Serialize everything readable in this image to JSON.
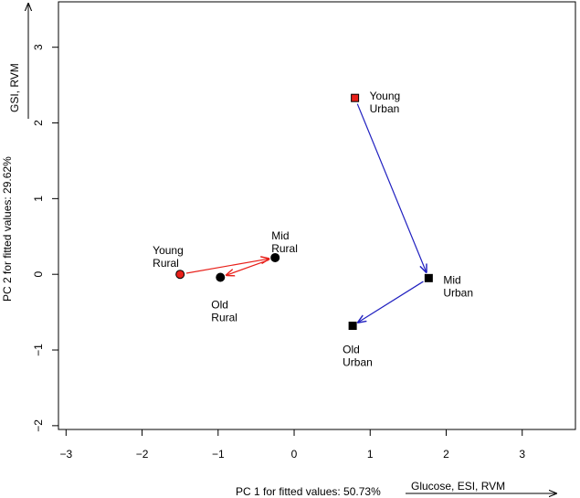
{
  "chart_data": {
    "type": "scatter",
    "title": "",
    "xlabel": "PC 1 for fitted values: 50.73%",
    "ylabel": "PC 2 for fitted values: 29.62%",
    "xlim": [
      -3.1,
      3.7
    ],
    "ylim": [
      -2.05,
      3.6
    ],
    "xticks": [
      "-3",
      "-2",
      "-1",
      "0",
      "1",
      "2",
      "3"
    ],
    "yticks": [
      "-2",
      "-1",
      "0",
      "1",
      "2",
      "3"
    ],
    "x_variable_arrow_label": "Glucose, ESI, RVM",
    "y_variable_arrow_label": "GSI, RVM",
    "series": [
      {
        "marker": "circle",
        "arrow_color": "#e8201a",
        "points": [
          {
            "label_lines": [
              "Young",
              "Rural"
            ],
            "x": -1.5,
            "y": 0.0,
            "fill": "#e8201a"
          },
          {
            "label_lines": [
              "Mid",
              "Rural"
            ],
            "x": -0.25,
            "y": 0.22,
            "fill": "#000000"
          },
          {
            "label_lines": [
              "Old",
              "Rural"
            ],
            "x": -0.97,
            "y": -0.04,
            "fill": "#000000"
          }
        ]
      },
      {
        "marker": "square",
        "arrow_color": "#2020c0",
        "points": [
          {
            "label_lines": [
              "Young",
              "Urban"
            ],
            "x": 0.8,
            "y": 2.33,
            "fill": "#e8201a"
          },
          {
            "label_lines": [
              "Mid",
              "Urban"
            ],
            "x": 1.77,
            "y": -0.05,
            "fill": "#000000"
          },
          {
            "label_lines": [
              "Old",
              "Urban"
            ],
            "x": 0.77,
            "y": -0.68,
            "fill": "#000000"
          }
        ]
      }
    ]
  }
}
